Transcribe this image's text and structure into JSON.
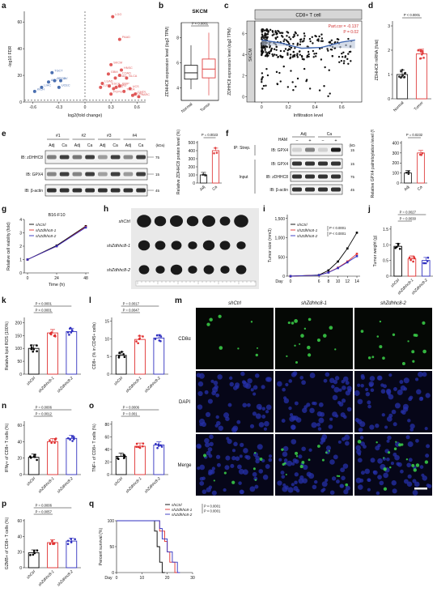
{
  "panels": {
    "a": "a",
    "b": "b",
    "c": "c",
    "d": "d",
    "e": "e",
    "f": "f",
    "g": "g",
    "h": "h",
    "i": "i",
    "j": "j",
    "k": "k",
    "l": "l",
    "m": "m",
    "n": "n",
    "o": "o",
    "p": "p",
    "q": "q"
  },
  "chart_data": [
    {
      "panel": "a",
      "type": "scatter",
      "xlabel": "log2(fold change)",
      "ylabel": "-log10 FDR",
      "xticks": [
        "-0.6",
        "-0.3",
        "0",
        "0.3",
        "0.6"
      ],
      "yticks": [
        "0",
        "20",
        "40",
        "60"
      ],
      "xlim": [
        -0.7,
        0.7
      ],
      "ylim": [
        0,
        68
      ],
      "labels_down": [
        "OV",
        "TGCT",
        "ACC",
        "BRCA",
        "LIHC",
        "KICH",
        "UCEC"
      ],
      "labels_up": [
        "LGG",
        "PAAD",
        "SKCM",
        "GBM",
        "HNSC",
        "COAD",
        "READ",
        "LUAD",
        "ESCA",
        "LUSC",
        "KIRC",
        "KIRP",
        "BLCA",
        "STAD",
        "PCPG",
        "UCS",
        "THCA",
        "CHOL",
        "SARC",
        "DLBC"
      ],
      "points_down": [
        [
          -0.28,
          16
        ],
        [
          -0.38,
          22
        ],
        [
          -0.42,
          15
        ],
        [
          -0.35,
          16
        ],
        [
          -0.5,
          11
        ],
        [
          -0.58,
          8
        ],
        [
          -0.3,
          11
        ]
      ],
      "points_up": [
        [
          0.32,
          64
        ],
        [
          0.4,
          47
        ],
        [
          0.3,
          28
        ],
        [
          0.27,
          21
        ],
        [
          0.42,
          24
        ],
        [
          0.4,
          20
        ],
        [
          0.35,
          18
        ],
        [
          0.2,
          14
        ],
        [
          0.28,
          12
        ],
        [
          0.18,
          11
        ],
        [
          0.33,
          10
        ],
        [
          0.4,
          12
        ],
        [
          0.48,
          18
        ],
        [
          0.36,
          11
        ],
        [
          0.3,
          6
        ],
        [
          0.52,
          10
        ],
        [
          0.45,
          8
        ],
        [
          0.58,
          6
        ],
        [
          0.62,
          4
        ],
        [
          0.55,
          5
        ]
      ]
    },
    {
      "panel": "b",
      "type": "box",
      "title": "SKCM",
      "ylabel": "ZDHHC8 expression level (log2 TPM)",
      "yticks": [
        "4",
        "6",
        "8"
      ],
      "ylim": [
        3,
        9.2
      ],
      "pvalue": "P < 0.0001",
      "categories": [
        "Normal",
        "Tumor"
      ],
      "series": [
        {
          "name": "Normal",
          "color": "#222222",
          "min": 3.9,
          "q1": 4.7,
          "median": 5.2,
          "q3": 5.8,
          "max": 7.4
        },
        {
          "name": "Tumor",
          "color": "#e04040",
          "min": 3.4,
          "q1": 4.8,
          "median": 5.5,
          "q3": 6.3,
          "max": 8.4
        }
      ]
    },
    {
      "panel": "c",
      "type": "scatter",
      "title": "CD8+ T cell",
      "side_label": "SKCM",
      "xlabel": "Infiltration level",
      "ylabel": "ZDHHC8 expression level (log2 TPM)",
      "xticks": [
        "0",
        "0.2",
        "0.4",
        "0.6"
      ],
      "yticks": [
        "0",
        "2",
        "4",
        "6"
      ],
      "xlim": [
        -0.05,
        0.75
      ],
      "ylim": [
        -0.5,
        7.2
      ],
      "annotation": "Part.cor = -0.137",
      "annotation2": "P = 0.02",
      "fit_line": [
        [
          0,
          5.4
        ],
        [
          0.15,
          5.1
        ],
        [
          0.3,
          4.6
        ],
        [
          0.45,
          4.7
        ],
        [
          0.6,
          5.2
        ],
        [
          0.7,
          5.4
        ]
      ]
    },
    {
      "panel": "d",
      "type": "bar",
      "ylabel": "ZDHHC8 mRNA (fold)",
      "yticks": [
        "0",
        "1",
        "2",
        "3"
      ],
      "ylim": [
        0,
        3.2
      ],
      "pvalue": "P < 0.0001",
      "categories": [
        "Normal",
        "Tumor"
      ],
      "values": [
        1.0,
        1.85
      ],
      "colors": [
        "#222222",
        "#e04040"
      ]
    },
    {
      "panel": "e",
      "type": "western",
      "groups": [
        "#1",
        "#2",
        "#3",
        "#4"
      ],
      "lanes": [
        "Adj",
        "Ca",
        "Adj",
        "Ca",
        "Adj",
        "Ca",
        "Adj",
        "Ca"
      ],
      "rows": [
        "IB: zDHHC8",
        "IB: GPX4",
        "IB: β-actin"
      ],
      "kda_label": "(kDa)",
      "kda": [
        "75",
        "15",
        "45"
      ]
    },
    {
      "panel": "e2",
      "type": "bar",
      "ylabel": "Relative ZDHHC8 protein level (%)",
      "yticks": [
        "0",
        "100",
        "200",
        "300",
        "400",
        "500"
      ],
      "ylim": [
        0,
        520
      ],
      "pvalue": "P = 0.0023",
      "categories": [
        "Adj",
        "Ca"
      ],
      "values": [
        100,
        400
      ],
      "colors": [
        "#222222",
        "#e04040"
      ]
    },
    {
      "panel": "f",
      "type": "western",
      "treatment": "HAM",
      "groups": [
        "Adj",
        "Ca"
      ],
      "ham_signs": [
        "−",
        "+",
        "−",
        "+"
      ],
      "side_labels": [
        "IP: Strep.",
        "Input"
      ],
      "rows": [
        "IB: GPX4",
        "IB: GPX4",
        "IB: zDHHC8",
        "IB: β-actin"
      ],
      "kda_label": "(kDa)",
      "kda": [
        "15",
        "15",
        "75",
        "45"
      ]
    },
    {
      "panel": "f2",
      "type": "bar",
      "ylabel": "Relative GPX4 palmitoylation level (%)",
      "yticks": [
        "0",
        "100",
        "200",
        "300",
        "400"
      ],
      "ylim": [
        0,
        420
      ],
      "pvalue": "P = 0.0232",
      "categories": [
        "Adj",
        "Ca"
      ],
      "values": [
        100,
        300
      ],
      "colors": [
        "#222222",
        "#e04040"
      ]
    },
    {
      "panel": "g",
      "type": "line",
      "title": "B16-F10",
      "xlabel": "Time (h)",
      "ylabel": "Relative cell viability (fold)",
      "xticks": [
        "0",
        "24",
        "48"
      ],
      "yticks": [
        "0",
        "1",
        "2",
        "3",
        "4"
      ],
      "x": [
        0,
        24,
        48
      ],
      "ylim": [
        0,
        4
      ],
      "series": [
        {
          "name": "shCtrl",
          "color": "#000000",
          "values": [
            1.0,
            2.05,
            3.5
          ]
        },
        {
          "name": "shZdhhc8-1",
          "color": "#e03030",
          "values": [
            1.0,
            2.0,
            3.45
          ]
        },
        {
          "name": "shZdhhc8-2",
          "color": "#3030c0",
          "values": [
            1.0,
            2.0,
            3.4
          ]
        }
      ]
    },
    {
      "panel": "h",
      "type": "photo",
      "row_labels": [
        "shCtrl",
        "shZdhhc8-1",
        "shZdhhc8-2"
      ]
    },
    {
      "panel": "i",
      "type": "line",
      "xlabel": "Day",
      "ylabel": "Tumor size (mm3)",
      "xticks": [
        "0",
        "6",
        "8",
        "10",
        "12",
        "14"
      ],
      "yticks": [
        "0",
        "500",
        "1,000",
        "1,500"
      ],
      "x": [
        0,
        6,
        8,
        10,
        12,
        14
      ],
      "ylim": [
        0,
        1600
      ],
      "pvalues": [
        "P < 0.0001",
        "P < 0.0001"
      ],
      "series": [
        {
          "name": "shCtrl",
          "color": "#000000",
          "values": [
            0,
            30,
            150,
            380,
            720,
            1130
          ]
        },
        {
          "name": "shZdhhc8-1",
          "color": "#e03030",
          "values": [
            0,
            25,
            100,
            220,
            380,
            580
          ]
        },
        {
          "name": "shZdhhc8-2",
          "color": "#3030c0",
          "values": [
            0,
            25,
            95,
            210,
            360,
            520
          ]
        }
      ]
    },
    {
      "panel": "j",
      "type": "bar",
      "ylabel": "Tumor weight (g)",
      "yticks": [
        "0",
        "0.5",
        "1.0",
        "1.5"
      ],
      "ylim": [
        0,
        1.6
      ],
      "pvalues": [
        "P = 0.0027",
        "P = 0.0030"
      ],
      "categories": [
        "shCtrl",
        "shZdhhc8-1",
        "shZdhhc8-2"
      ],
      "values": [
        0.95,
        0.55,
        0.5
      ],
      "colors": [
        "#000000",
        "#e03030",
        "#3030c0"
      ]
    },
    {
      "panel": "k",
      "type": "bar",
      "ylabel": "Relative lipid ROS (100%)",
      "yticks": [
        "0",
        "50",
        "100",
        "150",
        "200"
      ],
      "ylim": [
        0,
        220
      ],
      "pvalues": [
        "P < 0.0001",
        "P < 0.0001"
      ],
      "categories": [
        "shCtrl",
        "shZdhhc8-1",
        "shZdhhc8-2"
      ],
      "values": [
        100,
        160,
        165
      ],
      "colors": [
        "#000000",
        "#e03030",
        "#3030c0"
      ]
    },
    {
      "panel": "l",
      "type": "bar",
      "ylabel": "CD8+ (% in CD45+ cells)",
      "yticks": [
        "0",
        "5",
        "10",
        "15"
      ],
      "ylim": [
        0,
        16
      ],
      "pvalues": [
        "P = 0.0017",
        "P = 0.0047"
      ],
      "categories": [
        "shCtrl",
        "shZdhhc8-1",
        "shZdhhc8-2"
      ],
      "values": [
        5.3,
        9.8,
        10.2
      ],
      "colors": [
        "#000000",
        "#e03030",
        "#3030c0"
      ]
    },
    {
      "panel": "m",
      "type": "image-grid",
      "columns": [
        "shCtrl",
        "shZdhhc8-1",
        "shZdhhc8-2"
      ],
      "rows": [
        "CD8α",
        "DAPI",
        "Merge"
      ]
    },
    {
      "panel": "n",
      "type": "bar",
      "ylabel": "IFNγ+ of CD8+ T cells (%)",
      "yticks": [
        "0",
        "20",
        "40",
        "60"
      ],
      "ylim": [
        0,
        65
      ],
      "pvalues": [
        "P = 0.0006",
        "P = 0.0012"
      ],
      "categories": [
        "shCtrl",
        "shZdhhc8-1",
        "shZdhhc8-2"
      ],
      "values": [
        21,
        40,
        44
      ],
      "colors": [
        "#000000",
        "#e03030",
        "#3030c0"
      ]
    },
    {
      "panel": "o",
      "type": "bar",
      "ylabel": "TNF+ of CD8+ T cells (%)",
      "yticks": [
        "0",
        "20",
        "40",
        "60",
        "80"
      ],
      "ylim": [
        0,
        85
      ],
      "pvalues": [
        "P = 0.0006",
        "P = 0.001"
      ],
      "categories": [
        "shCtrl",
        "shZdhhc8-1",
        "shZdhhc8-2"
      ],
      "values": [
        29,
        45,
        47
      ],
      "colors": [
        "#000000",
        "#e03030",
        "#3030c0"
      ]
    },
    {
      "panel": "p",
      "type": "bar",
      "ylabel": "GZMB+ of CD8+ T cells (%)",
      "yticks": [
        "0",
        "20",
        "40",
        "60"
      ],
      "ylim": [
        0,
        62
      ],
      "pvalues": [
        "P = 0.0006",
        "P = 0.0057"
      ],
      "categories": [
        "shCtrl",
        "shZdhhc8-1",
        "shZdhhc8-2"
      ],
      "values": [
        19,
        32,
        34
      ],
      "colors": [
        "#000000",
        "#e03030",
        "#3030c0"
      ]
    },
    {
      "panel": "q",
      "type": "survival",
      "xlabel": "Day",
      "ylabel": "Percent survival (%)",
      "xticks": [
        "0",
        "10",
        "20",
        "30"
      ],
      "yticks": [
        "0",
        "50",
        "100"
      ],
      "xlim": [
        0,
        30
      ],
      "ylim": [
        0,
        100
      ],
      "pvalues": [
        "P < 0.0001",
        "P < 0.0001"
      ],
      "series": [
        {
          "name": "shCtrl",
          "color": "#000000",
          "steps": [
            [
              0,
              100
            ],
            [
              14,
              100
            ],
            [
              15,
              80
            ],
            [
              16,
              50
            ],
            [
              17,
              20
            ],
            [
              18,
              0
            ]
          ]
        },
        {
          "name": "shZdhhc8-1",
          "color": "#e03030",
          "steps": [
            [
              0,
              100
            ],
            [
              16,
              100
            ],
            [
              17,
              80
            ],
            [
              19,
              60
            ],
            [
              20,
              40
            ],
            [
              21,
              20
            ],
            [
              23,
              0
            ]
          ]
        },
        {
          "name": "shZdhhc8-2",
          "color": "#3030c0",
          "steps": [
            [
              0,
              100
            ],
            [
              16,
              100
            ],
            [
              17,
              85
            ],
            [
              18,
              65
            ],
            [
              20,
              40
            ],
            [
              22,
              20
            ],
            [
              24,
              0
            ]
          ]
        }
      ]
    }
  ]
}
